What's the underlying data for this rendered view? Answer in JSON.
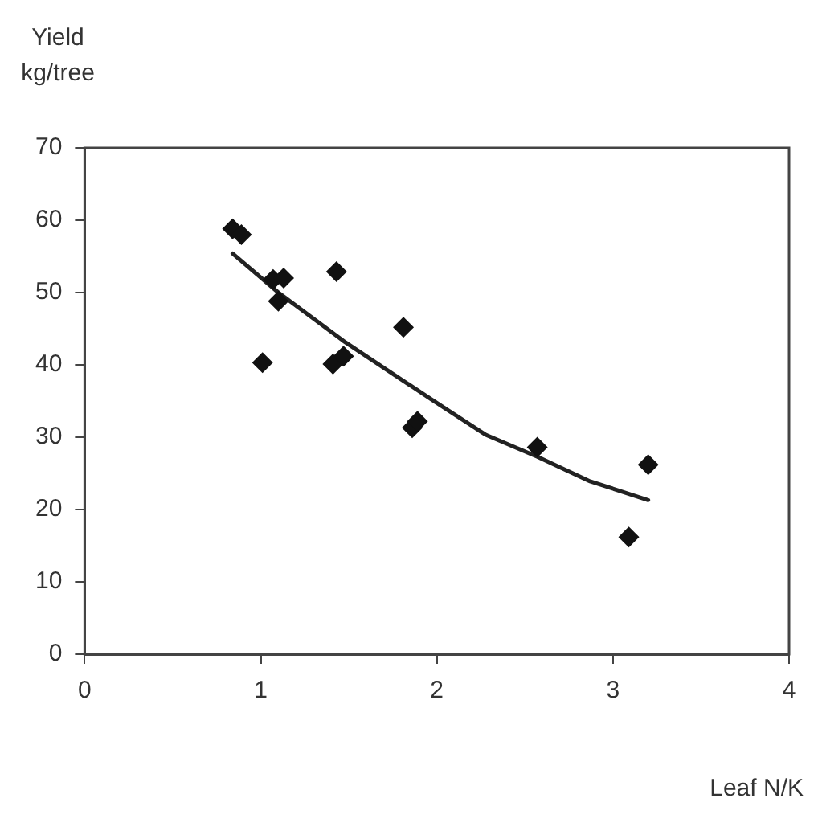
{
  "chart_data": {
    "type": "scatter",
    "xlabel": "Leaf N/K",
    "ylabel": "Yield\nkg/tree",
    "xlim": [
      0,
      4
    ],
    "xticks": [
      0,
      1,
      2,
      3,
      4
    ],
    "ylim": [
      0,
      70
    ],
    "yticks": [
      0,
      10,
      20,
      30,
      40,
      50,
      60,
      70
    ],
    "grid": false,
    "legend": false,
    "series": [
      {
        "type": "scatter",
        "color": "#111111",
        "marker": "diamond",
        "x": [
          0.84,
          0.89,
          1.01,
          1.07,
          1.13,
          1.1,
          1.43,
          1.41,
          1.47,
          1.81,
          1.86,
          1.89,
          2.57,
          3.09,
          3.2
        ],
        "values": [
          58.8,
          58,
          40.3,
          51.8,
          52,
          48.8,
          52.9,
          40.1,
          41.2,
          45.2,
          31.3,
          32.2,
          28.6,
          16.2,
          26.2
        ]
      },
      {
        "type": "line",
        "color": "#222222",
        "marker": "none",
        "line_style": "solid",
        "x": [
          0.84,
          1.1,
          1.47,
          1.97,
          2.28,
          2.57,
          2.87,
          3.2
        ],
        "values": [
          55.4,
          50,
          43.3,
          35.2,
          30.3,
          27.3,
          23.9,
          21.3
        ]
      }
    ]
  }
}
